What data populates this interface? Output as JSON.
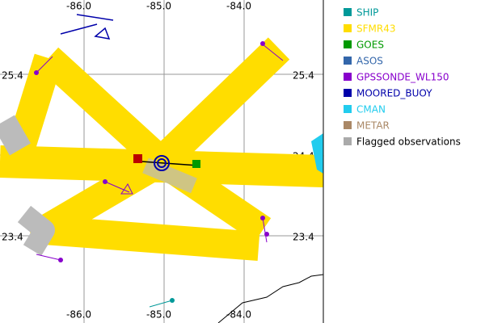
{
  "map": {
    "lon_ticks": [
      {
        "value": -86,
        "label": "-86.0"
      },
      {
        "value": -85,
        "label": "-85.0"
      },
      {
        "value": -84,
        "label": "-84.0"
      }
    ],
    "lat_ticks": [
      {
        "value": 25.4,
        "label": "25.4"
      },
      {
        "value": 24.4,
        "label": "24.4"
      },
      {
        "value": 23.4,
        "label": "23.4"
      }
    ],
    "legend": [
      {
        "name": "SHIP",
        "color": "#009999"
      },
      {
        "name": "SFMR43",
        "color": "#ffdd00"
      },
      {
        "name": "GOES",
        "color": "#009900"
      },
      {
        "name": "ASOS",
        "color": "#3366aa"
      },
      {
        "name": "GPSSONDE_WL150",
        "color": "#8800cc"
      },
      {
        "name": "MOORED_BUOY",
        "color": "#0000aa"
      },
      {
        "name": "CMAN",
        "color": "#22ccee"
      },
      {
        "name": "METAR",
        "color": "#aa8866"
      },
      {
        "name": "Flagged observations",
        "color": "#aaaaaa"
      }
    ]
  }
}
